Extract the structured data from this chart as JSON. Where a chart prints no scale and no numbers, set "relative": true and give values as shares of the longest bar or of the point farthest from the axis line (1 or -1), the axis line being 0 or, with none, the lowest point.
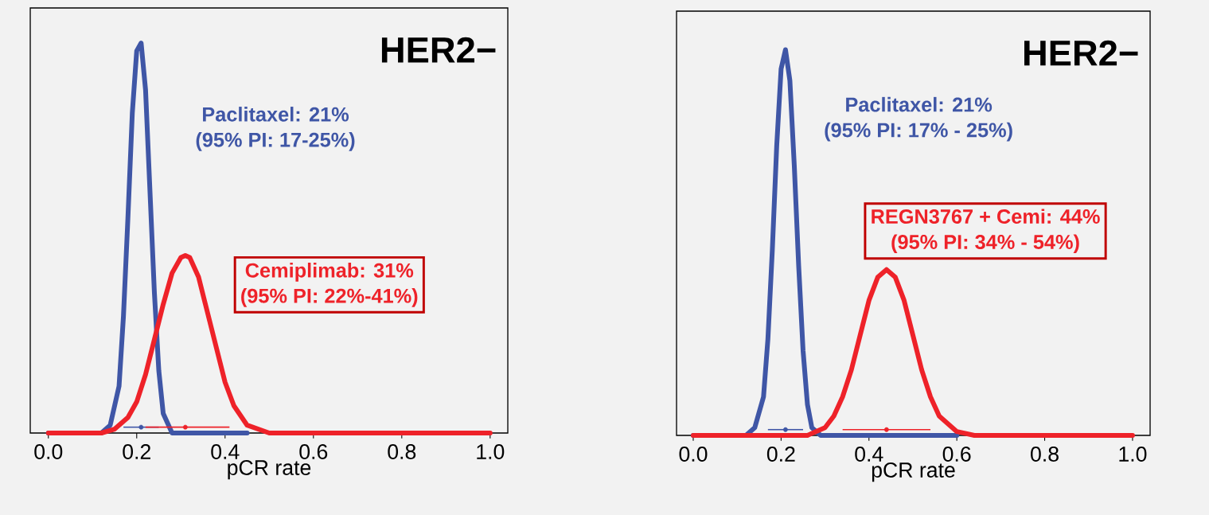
{
  "chart_data": [
    {
      "type": "line",
      "title": "HER2−",
      "xlabel": "pCR rate",
      "relative": true,
      "xlim": [
        -0.041,
        1.04
      ],
      "xticks": [
        {
          "value": 0,
          "label": "0.0"
        },
        {
          "value": 0.2,
          "label": "0.2"
        },
        {
          "value": 0.4,
          "label": "0.4"
        },
        {
          "value": 0.6,
          "label": "0.6"
        },
        {
          "value": 0.8,
          "label": "0.8"
        },
        {
          "value": 1,
          "label": "1.0"
        }
      ],
      "annotations": [
        "Paclitaxel: 21%",
        "(95% PI: 17-25%)",
        "Cemiplimab: 31%",
        "(95% PI: 22%-41%)"
      ],
      "series": [
        {
          "color": "#3f56a6",
          "x": [
            0,
            0.12,
            0.14,
            0.16,
            0.17,
            0.18,
            0.19,
            0.2,
            0.21,
            0.22,
            0.23,
            0.24,
            0.25,
            0.26,
            0.28,
            0.35,
            0.45
          ],
          "values": [
            0,
            0,
            0.02,
            0.12,
            0.3,
            0.55,
            0.82,
            0.98,
            1,
            0.88,
            0.62,
            0.36,
            0.16,
            0.05,
            0,
            0,
            0
          ]
        },
        {
          "color": "#ee2229",
          "x": [
            0,
            0.12,
            0.15,
            0.18,
            0.2,
            0.22,
            0.24,
            0.26,
            0.28,
            0.3,
            0.31,
            0.32,
            0.34,
            0.36,
            0.38,
            0.4,
            0.42,
            0.45,
            0.5,
            1.0
          ],
          "values": [
            0,
            0,
            0.01,
            0.04,
            0.08,
            0.15,
            0.24,
            0.33,
            0.41,
            0.45,
            0.455,
            0.45,
            0.4,
            0.31,
            0.22,
            0.13,
            0.07,
            0.02,
            0,
            0
          ]
        },
        {
          "type": "scatter",
          "color": "#3f56a6",
          "x": [
            0.21
          ],
          "values": [
            0.015
          ],
          "xerrors": [
            [
              0.17,
              0.25
            ]
          ]
        },
        {
          "type": "scatter",
          "color": "#ee2229",
          "x": [
            0.31
          ],
          "values": [
            0.015
          ],
          "xerrors": [
            [
              0.22,
              0.41
            ]
          ]
        }
      ]
    },
    {
      "type": "line",
      "title": "HER2−",
      "xlabel": "pCR rate",
      "relative": true,
      "xlim": [
        -0.038,
        1.04
      ],
      "xticks": [
        {
          "value": 0,
          "label": "0.0"
        },
        {
          "value": 0.2,
          "label": "0.2"
        },
        {
          "value": 0.4,
          "label": "0.4"
        },
        {
          "value": 0.6,
          "label": "0.6"
        },
        {
          "value": 0.8,
          "label": "0.8"
        },
        {
          "value": 1,
          "label": "1.0"
        }
      ],
      "annotations": [
        "Paclitaxel: 21%",
        "(95% PI: 17% - 25%)",
        "REGN3767 + Cemi: 44%",
        "(95% PI: 34% - 54%)"
      ],
      "series": [
        {
          "color": "#3f56a6",
          "x": [
            0,
            0.12,
            0.14,
            0.16,
            0.17,
            0.18,
            0.19,
            0.2,
            0.21,
            0.22,
            0.23,
            0.24,
            0.25,
            0.26,
            0.27,
            0.29,
            0.35,
            0.6
          ],
          "values": [
            0,
            0,
            0.02,
            0.1,
            0.25,
            0.48,
            0.75,
            0.95,
            1,
            0.92,
            0.7,
            0.44,
            0.22,
            0.08,
            0.02,
            0,
            0,
            0
          ]
        },
        {
          "color": "#ee2229",
          "x": [
            0,
            0.26,
            0.3,
            0.32,
            0.34,
            0.36,
            0.38,
            0.4,
            0.42,
            0.44,
            0.46,
            0.48,
            0.5,
            0.52,
            0.54,
            0.56,
            0.6,
            0.64,
            1.0
          ],
          "values": [
            0,
            0,
            0.02,
            0.05,
            0.1,
            0.17,
            0.26,
            0.35,
            0.41,
            0.43,
            0.41,
            0.35,
            0.26,
            0.17,
            0.1,
            0.05,
            0.01,
            0,
            0
          ]
        },
        {
          "type": "scatter",
          "color": "#3f56a6",
          "x": [
            0.21
          ],
          "values": [
            0.015
          ],
          "xerrors": [
            [
              0.17,
              0.25
            ]
          ]
        },
        {
          "type": "scatter",
          "color": "#ee2229",
          "x": [
            0.44
          ],
          "values": [
            0.015
          ],
          "xerrors": [
            [
              0.34,
              0.54
            ]
          ]
        }
      ]
    }
  ]
}
